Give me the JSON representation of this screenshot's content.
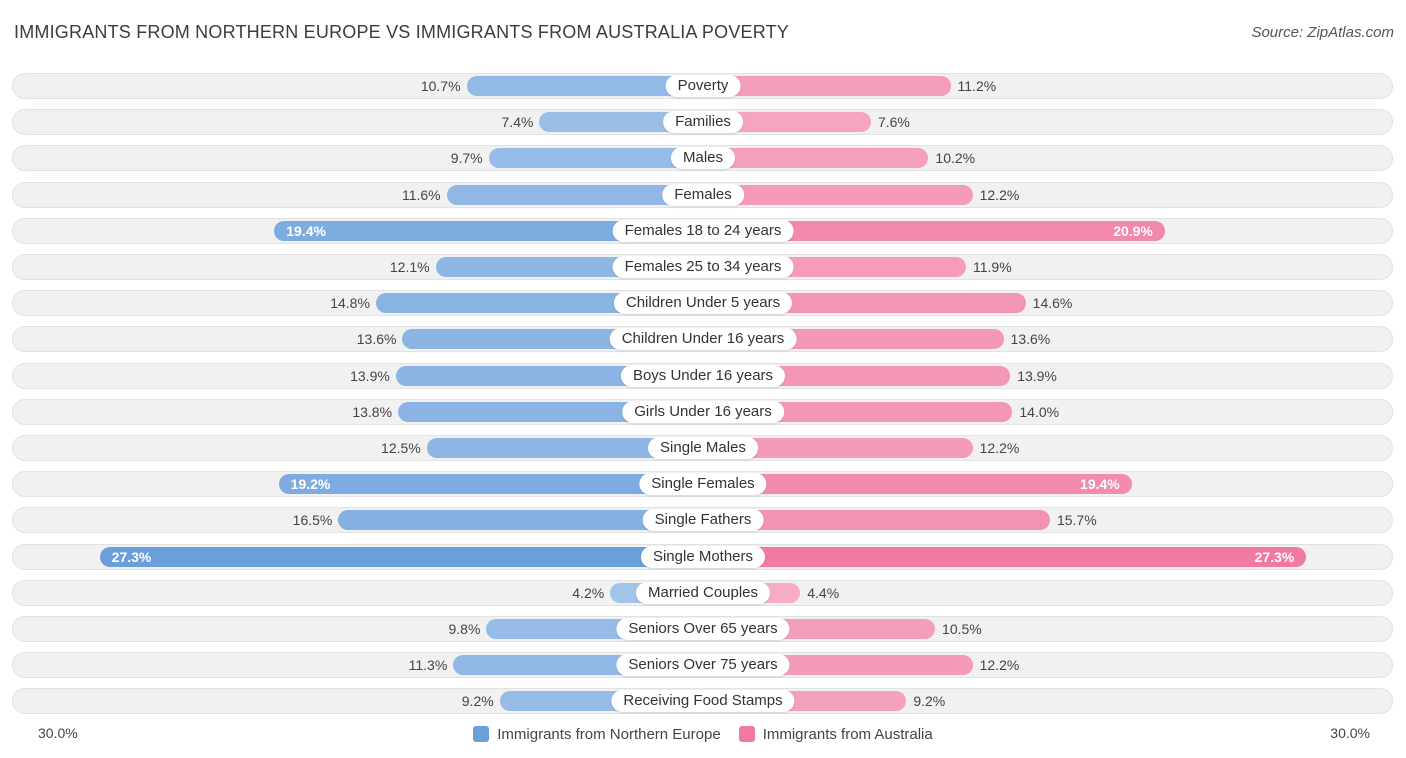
{
  "chart_data": {
    "type": "bar",
    "orientation": "horizontal-diverging",
    "title": "IMMIGRANTS FROM NORTHERN EUROPE VS IMMIGRANTS FROM AUSTRALIA POVERTY",
    "source": "Source: ZipAtlas.com",
    "axis_min_label": "30.0%",
    "axis_max_label": "30.0%",
    "xlim": [
      -30,
      30
    ],
    "categories": [
      "Poverty",
      "Families",
      "Males",
      "Females",
      "Females 18 to 24 years",
      "Females 25 to 34 years",
      "Children Under 5 years",
      "Children Under 16 years",
      "Boys Under 16 years",
      "Girls Under 16 years",
      "Single Males",
      "Single Females",
      "Single Fathers",
      "Single Mothers",
      "Married Couples",
      "Seniors Over 65 years",
      "Seniors Over 75 years",
      "Receiving Food Stamps"
    ],
    "series": [
      {
        "name": "Immigrants from Northern Europe",
        "color": "#6a9fdc",
        "values": [
          10.7,
          7.4,
          9.7,
          11.6,
          19.4,
          12.1,
          14.8,
          13.6,
          13.9,
          13.8,
          12.5,
          19.2,
          16.5,
          27.3,
          4.2,
          9.8,
          11.3,
          9.2
        ],
        "labels": [
          "10.7%",
          "7.4%",
          "9.7%",
          "11.6%",
          "19.4%",
          "12.1%",
          "14.8%",
          "13.6%",
          "13.9%",
          "13.8%",
          "12.5%",
          "19.2%",
          "16.5%",
          "27.3%",
          "4.2%",
          "9.8%",
          "11.3%",
          "9.2%"
        ]
      },
      {
        "name": "Immigrants from Australia",
        "color": "#f07aa0",
        "values": [
          11.2,
          7.6,
          10.2,
          12.2,
          20.9,
          11.9,
          14.6,
          13.6,
          13.9,
          14.0,
          12.2,
          19.4,
          15.7,
          27.3,
          4.4,
          10.5,
          12.2,
          9.2
        ],
        "labels": [
          "11.2%",
          "7.6%",
          "10.2%",
          "12.2%",
          "20.9%",
          "11.9%",
          "14.6%",
          "13.6%",
          "13.9%",
          "14.0%",
          "12.2%",
          "19.4%",
          "15.7%",
          "27.3%",
          "4.4%",
          "10.5%",
          "12.2%",
          "9.2%"
        ]
      }
    ],
    "legend_position": "bottom-center"
  }
}
